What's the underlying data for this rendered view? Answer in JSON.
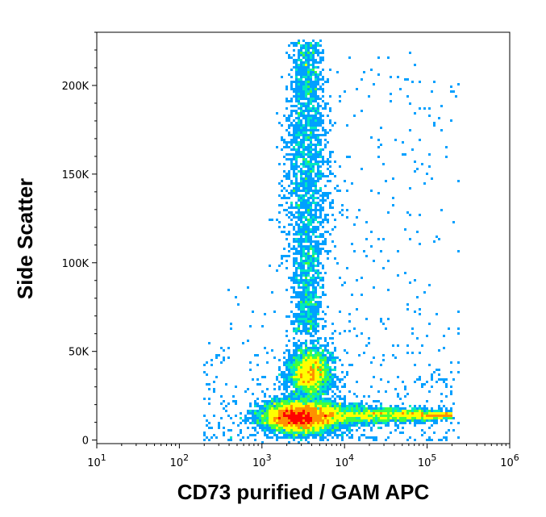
{
  "chart_data": {
    "type": "scatter",
    "subtype": "flow-cytometry-density",
    "title": "",
    "xlabel": "CD73 purified / GAM APC",
    "ylabel": "Side Scatter",
    "x_scale": "log",
    "xlim": [
      10,
      1000000
    ],
    "ylim": [
      -2000,
      230000
    ],
    "x_ticks": [
      {
        "value": 10,
        "base": "10",
        "exp": "1"
      },
      {
        "value": 100,
        "base": "10",
        "exp": "2"
      },
      {
        "value": 1000,
        "base": "10",
        "exp": "3"
      },
      {
        "value": 10000,
        "base": "10",
        "exp": "4"
      },
      {
        "value": 100000,
        "base": "10",
        "exp": "5"
      },
      {
        "value": 1000000,
        "base": "10",
        "exp": "6"
      }
    ],
    "y_ticks": [
      {
        "value": 0,
        "label": "0"
      },
      {
        "value": 50000,
        "label": "50K"
      },
      {
        "value": 100000,
        "label": "100K"
      },
      {
        "value": 150000,
        "label": "150K"
      },
      {
        "value": 200000,
        "label": "200K"
      }
    ],
    "grid": false,
    "legend": "none",
    "colormap": [
      "#0000ff",
      "#00a0ff",
      "#00e8c0",
      "#40ff40",
      "#ffff00",
      "#ff9000",
      "#ff0000"
    ],
    "populations": [
      {
        "x_log_center": 3.45,
        "x_log_sd": 0.22,
        "y_center": 13000,
        "y_sd": 4500,
        "density": "very high"
      },
      {
        "x_log_center": 3.58,
        "x_log_sd": 0.13,
        "y_center": 38000,
        "y_sd": 7000,
        "density": "medium-high"
      },
      {
        "x_log_center": 3.55,
        "x_log_sd": 0.16,
        "y_center": 140000,
        "y_sd": 38000,
        "density": "medium"
      },
      {
        "x_log_center": 4.5,
        "x_log_sd": 0.4,
        "y_center": 14000,
        "y_sd": 4000,
        "density": "medium"
      }
    ]
  }
}
